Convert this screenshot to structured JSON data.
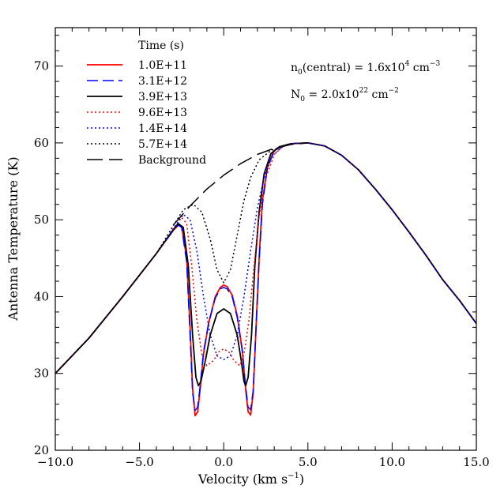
{
  "chart_data": {
    "type": "line",
    "xlabel": "Velocity (km s",
    "xlabel_sup": "−1",
    "xlabel_close": ")",
    "ylabel": "Antenna Temperature (K)",
    "xlim": [
      -10,
      15
    ],
    "ylim": [
      20,
      75
    ],
    "xticks": [
      -10,
      -5,
      0,
      5,
      10,
      15
    ],
    "xtick_labels": [
      "−10.0",
      "−5.0",
      "0.0",
      "5.0",
      "10.0",
      "15.0"
    ],
    "yticks": [
      20,
      30,
      40,
      50,
      60,
      70
    ],
    "ytick_labels": [
      "20",
      "30",
      "40",
      "50",
      "60",
      "70"
    ],
    "grid": false,
    "legend_position": "top-left",
    "legend_title": "Time (s)",
    "annotations": [
      {
        "base": "n",
        "sub": "0",
        "mid": "(central) = 1.6x10",
        "sup": "4",
        "unit": " cm",
        "unit_sup": "−3"
      },
      {
        "base": "N",
        "sub": "0",
        "mid": " = 2.0x10",
        "sup": "22",
        "unit": " cm",
        "unit_sup": "−2"
      }
    ],
    "series": [
      {
        "name": "1.0E+11",
        "color": "#ff0000",
        "style": "solid",
        "points": [
          [
            -10,
            30
          ],
          [
            -8,
            34.6
          ],
          [
            -6,
            40
          ],
          [
            -4,
            45.6
          ],
          [
            -3,
            48.6
          ],
          [
            -2.7,
            49.3
          ],
          [
            -2.5,
            49.2
          ],
          [
            -2.2,
            45
          ],
          [
            -2,
            36
          ],
          [
            -1.85,
            28
          ],
          [
            -1.7,
            24.5
          ],
          [
            -1.55,
            25
          ],
          [
            -1.4,
            28
          ],
          [
            -1.2,
            32.5
          ],
          [
            -0.9,
            36.5
          ],
          [
            -0.5,
            40
          ],
          [
            -0.2,
            41.2
          ],
          [
            0,
            41.5
          ],
          [
            0.2,
            41.3
          ],
          [
            0.5,
            40.2
          ],
          [
            0.8,
            37.5
          ],
          [
            1.1,
            33
          ],
          [
            1.3,
            28
          ],
          [
            1.45,
            25
          ],
          [
            1.6,
            24.6
          ],
          [
            1.75,
            27.5
          ],
          [
            1.9,
            35
          ],
          [
            2.1,
            45
          ],
          [
            2.3,
            52.5
          ],
          [
            2.6,
            57
          ],
          [
            3,
            59
          ],
          [
            3.5,
            59.6
          ],
          [
            4,
            59.9
          ],
          [
            5,
            60
          ],
          [
            6,
            59.6
          ],
          [
            7,
            58.4
          ],
          [
            8,
            56.5
          ],
          [
            9,
            54
          ],
          [
            10,
            51.3
          ],
          [
            11,
            48.4
          ],
          [
            12,
            45.4
          ],
          [
            13,
            42.2
          ],
          [
            14,
            39.5
          ],
          [
            15,
            36.5
          ]
        ]
      },
      {
        "name": "3.1E+12",
        "color": "#0000ff",
        "style": "dashed",
        "points": [
          [
            -10,
            30
          ],
          [
            -8,
            34.6
          ],
          [
            -6,
            40
          ],
          [
            -4,
            45.6
          ],
          [
            -3,
            48.6
          ],
          [
            -2.7,
            49.3
          ],
          [
            -2.5,
            49
          ],
          [
            -2.2,
            44.5
          ],
          [
            -2,
            35
          ],
          [
            -1.85,
            27.5
          ],
          [
            -1.7,
            25.2
          ],
          [
            -1.55,
            25.6
          ],
          [
            -1.4,
            28.4
          ],
          [
            -1.2,
            32.8
          ],
          [
            -0.9,
            36.5
          ],
          [
            -0.5,
            39.8
          ],
          [
            -0.2,
            41
          ],
          [
            0,
            41.2
          ],
          [
            0.2,
            41
          ],
          [
            0.5,
            40
          ],
          [
            0.8,
            37.3
          ],
          [
            1.1,
            33
          ],
          [
            1.3,
            28.3
          ],
          [
            1.45,
            25.6
          ],
          [
            1.6,
            25.3
          ],
          [
            1.75,
            27.8
          ],
          [
            1.9,
            35
          ],
          [
            2.1,
            44.5
          ],
          [
            2.3,
            52
          ],
          [
            2.6,
            56.8
          ],
          [
            3,
            59
          ],
          [
            3.5,
            59.6
          ],
          [
            4,
            59.9
          ],
          [
            5,
            60
          ],
          [
            6,
            59.6
          ],
          [
            7,
            58.4
          ],
          [
            8,
            56.5
          ],
          [
            9,
            54
          ],
          [
            10,
            51.3
          ],
          [
            11,
            48.4
          ],
          [
            12,
            45.4
          ],
          [
            13,
            42.2
          ],
          [
            14,
            39.5
          ],
          [
            15,
            36.5
          ]
        ]
      },
      {
        "name": "3.9E+13",
        "color": "#000000",
        "style": "solid",
        "points": [
          [
            -10,
            30
          ],
          [
            -8,
            34.6
          ],
          [
            -6,
            40
          ],
          [
            -4,
            45.6
          ],
          [
            -3,
            48.7
          ],
          [
            -2.7,
            49.5
          ],
          [
            -2.4,
            49
          ],
          [
            -2.1,
            44
          ],
          [
            -1.85,
            35
          ],
          [
            -1.65,
            29.5
          ],
          [
            -1.5,
            28.4
          ],
          [
            -1.35,
            29
          ],
          [
            -1.1,
            31.5
          ],
          [
            -0.8,
            35
          ],
          [
            -0.4,
            37.8
          ],
          [
            0,
            38.4
          ],
          [
            0.4,
            37.8
          ],
          [
            0.8,
            35
          ],
          [
            1.05,
            31.5
          ],
          [
            1.2,
            29
          ],
          [
            1.3,
            28.4
          ],
          [
            1.45,
            29.5
          ],
          [
            1.65,
            35
          ],
          [
            1.85,
            44
          ],
          [
            2.1,
            51
          ],
          [
            2.4,
            56
          ],
          [
            2.8,
            58.6
          ],
          [
            3.3,
            59.5
          ],
          [
            4,
            59.9
          ],
          [
            5,
            60
          ],
          [
            6,
            59.6
          ],
          [
            7,
            58.4
          ],
          [
            8,
            56.5
          ],
          [
            9,
            54
          ],
          [
            10,
            51.3
          ],
          [
            11,
            48.4
          ],
          [
            12,
            45.4
          ],
          [
            13,
            42.2
          ],
          [
            14,
            39.5
          ],
          [
            15,
            36.5
          ]
        ]
      },
      {
        "name": "9.6E+13",
        "color": "#ff0000",
        "style": "dotted",
        "points": [
          [
            -10,
            30
          ],
          [
            -8,
            34.6
          ],
          [
            -6,
            40
          ],
          [
            -4,
            45.6
          ],
          [
            -3,
            48.8
          ],
          [
            -2.5,
            50.3
          ],
          [
            -2.2,
            49.5
          ],
          [
            -1.9,
            44
          ],
          [
            -1.6,
            37
          ],
          [
            -1.3,
            32.5
          ],
          [
            -1,
            31
          ],
          [
            -0.6,
            31.7
          ],
          [
            -0.3,
            32.8
          ],
          [
            0,
            33.2
          ],
          [
            0.3,
            32.8
          ],
          [
            0.6,
            31.7
          ],
          [
            0.95,
            31
          ],
          [
            1.2,
            32.5
          ],
          [
            1.5,
            37
          ],
          [
            1.8,
            44
          ],
          [
            2.1,
            50.5
          ],
          [
            2.5,
            55.5
          ],
          [
            3,
            58.5
          ],
          [
            3.5,
            59.5
          ],
          [
            4,
            59.9
          ],
          [
            5,
            60
          ],
          [
            6,
            59.6
          ],
          [
            7,
            58.4
          ],
          [
            8,
            56.5
          ],
          [
            9,
            54
          ],
          [
            10,
            51.3
          ],
          [
            11,
            48.4
          ],
          [
            12,
            45.4
          ],
          [
            13,
            42.2
          ],
          [
            14,
            39.5
          ],
          [
            15,
            36.5
          ]
        ]
      },
      {
        "name": "1.4E+14",
        "color": "#0000ff",
        "style": "dotted",
        "points": [
          [
            -10,
            30
          ],
          [
            -8,
            34.6
          ],
          [
            -6,
            40
          ],
          [
            -4,
            45.6
          ],
          [
            -3,
            48.8
          ],
          [
            -2.4,
            50.7
          ],
          [
            -2,
            50
          ],
          [
            -1.6,
            46
          ],
          [
            -1.2,
            40
          ],
          [
            -0.8,
            35
          ],
          [
            -0.4,
            32.3
          ],
          [
            0,
            31.8
          ],
          [
            0.4,
            32.3
          ],
          [
            0.8,
            35
          ],
          [
            1.2,
            40
          ],
          [
            1.6,
            46
          ],
          [
            2,
            51.5
          ],
          [
            2.4,
            55.5
          ],
          [
            2.9,
            58.4
          ],
          [
            3.5,
            59.5
          ],
          [
            4,
            59.9
          ],
          [
            5,
            60
          ],
          [
            6,
            59.6
          ],
          [
            7,
            58.4
          ],
          [
            8,
            56.5
          ],
          [
            9,
            54
          ],
          [
            10,
            51.3
          ],
          [
            11,
            48.4
          ],
          [
            12,
            45.4
          ],
          [
            13,
            42.2
          ],
          [
            14,
            39.5
          ],
          [
            15,
            36.5
          ]
        ]
      },
      {
        "name": "5.7E+14",
        "color": "#000000",
        "style": "dotted",
        "points": [
          [
            -10,
            30
          ],
          [
            -8,
            34.6
          ],
          [
            -6,
            40
          ],
          [
            -4,
            45.6
          ],
          [
            -3,
            49.2
          ],
          [
            -2.4,
            51.3
          ],
          [
            -1.8,
            52
          ],
          [
            -1.3,
            51
          ],
          [
            -0.8,
            47.5
          ],
          [
            -0.4,
            43.5
          ],
          [
            0,
            41.8
          ],
          [
            0.4,
            43.5
          ],
          [
            0.8,
            48
          ],
          [
            1.2,
            52.5
          ],
          [
            1.6,
            55.5
          ],
          [
            2.1,
            57.8
          ],
          [
            2.8,
            59
          ],
          [
            3.5,
            59.6
          ],
          [
            4,
            59.9
          ],
          [
            5,
            60
          ],
          [
            6,
            59.6
          ],
          [
            7,
            58.4
          ],
          [
            8,
            56.5
          ],
          [
            9,
            54
          ],
          [
            10,
            51.3
          ],
          [
            11,
            48.4
          ],
          [
            12,
            45.4
          ],
          [
            13,
            42.2
          ],
          [
            14,
            39.5
          ],
          [
            15,
            36.5
          ]
        ]
      },
      {
        "name": "Background",
        "color": "#000000",
        "style": "longdash",
        "points": [
          [
            -3,
            49.3
          ],
          [
            -2,
            51.8
          ],
          [
            -1,
            54
          ],
          [
            0,
            55.8
          ],
          [
            1,
            57.3
          ],
          [
            2,
            58.5
          ],
          [
            3,
            59.3
          ],
          [
            4,
            59.8
          ],
          [
            5,
            60
          ]
        ]
      }
    ]
  }
}
